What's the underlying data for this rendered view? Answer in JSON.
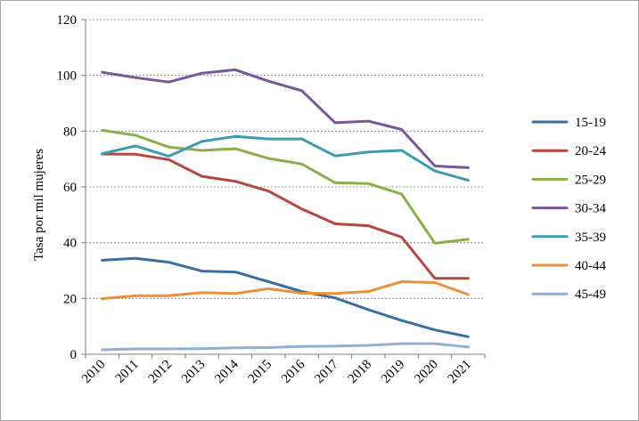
{
  "chart_data": {
    "type": "line",
    "title": "",
    "xlabel": "",
    "ylabel": "Tasa por mil mujeres",
    "categories": [
      "2010",
      "2011",
      "2012",
      "2013",
      "2014",
      "2015",
      "2016",
      "2017",
      "2018",
      "2019",
      "2020",
      "2021"
    ],
    "ylim": [
      0,
      120
    ],
    "yticks": [
      0,
      20,
      40,
      60,
      80,
      100,
      120
    ],
    "grid": true,
    "legend_position": "right",
    "series": [
      {
        "name": "15-19",
        "color": "#3c6ea3",
        "values": [
          33.7,
          34.4,
          33.0,
          29.8,
          29.5,
          26.0,
          22.5,
          20.2,
          16.0,
          12.1,
          8.7,
          6.3
        ]
      },
      {
        "name": "20-24",
        "color": "#b5473f",
        "values": [
          71.8,
          71.7,
          69.8,
          63.8,
          62.0,
          58.5,
          52.1,
          46.8,
          46.1,
          42.0,
          27.2,
          27.2
        ]
      },
      {
        "name": "25-29",
        "color": "#8caf4a",
        "values": [
          80.3,
          78.5,
          74.3,
          73.1,
          73.7,
          70.2,
          68.2,
          61.5,
          61.2,
          57.4,
          39.8,
          41.2
        ]
      },
      {
        "name": "30-34",
        "color": "#77589a",
        "values": [
          101.1,
          99.2,
          97.6,
          100.8,
          102.0,
          97.9,
          94.5,
          83.0,
          83.6,
          80.6,
          67.5,
          66.9
        ]
      },
      {
        "name": "35-39",
        "color": "#3d9bb1",
        "values": [
          71.9,
          74.7,
          71.0,
          76.3,
          78.1,
          77.2,
          77.2,
          71.1,
          72.5,
          73.1,
          65.7,
          62.4
        ]
      },
      {
        "name": "40-44",
        "color": "#e8923c",
        "values": [
          19.9,
          21.0,
          21.0,
          22.1,
          21.8,
          23.5,
          21.9,
          21.8,
          22.5,
          26.0,
          25.7,
          21.4
        ]
      },
      {
        "name": "45-49",
        "color": "#93aed6",
        "values": [
          1.6,
          1.9,
          1.9,
          2.0,
          2.3,
          2.4,
          2.8,
          2.9,
          3.2,
          3.8,
          3.8,
          2.6
        ]
      }
    ]
  }
}
